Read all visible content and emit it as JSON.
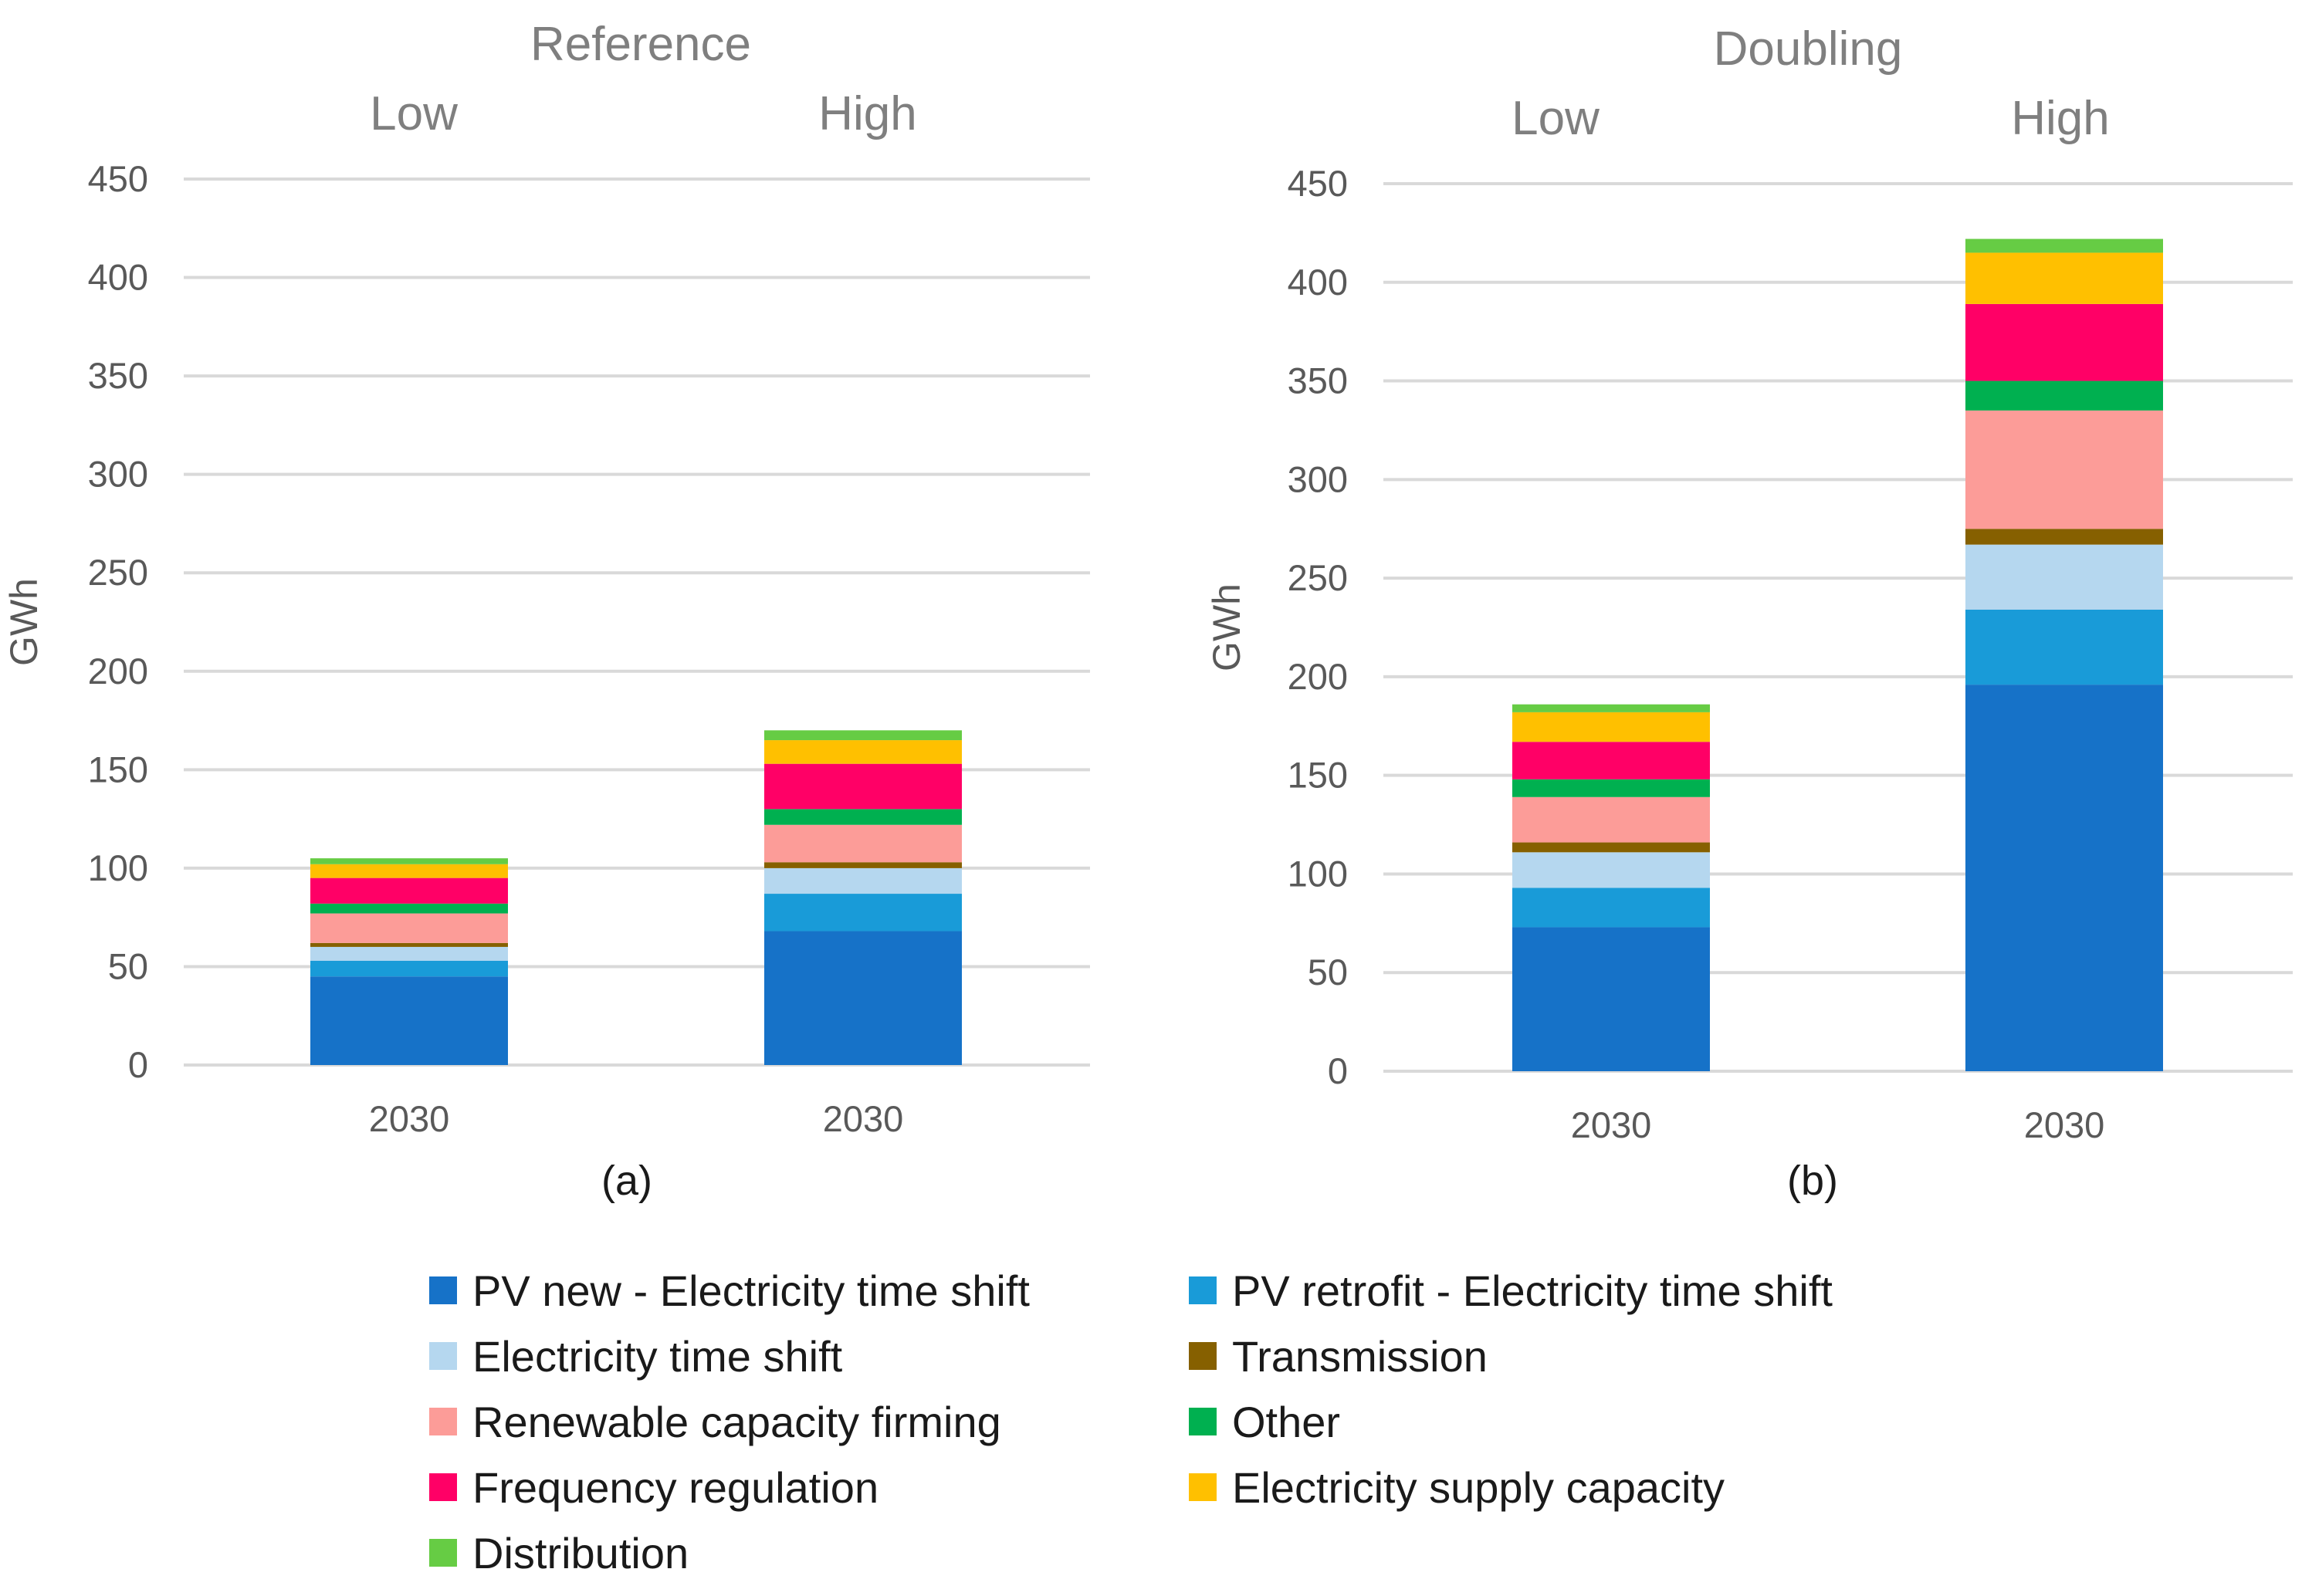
{
  "legend": [
    {
      "name": "PV new - Electricity time shift",
      "color": "#1672c8"
    },
    {
      "name": "PV retrofit - Electricity time shift",
      "color": "#199bd8"
    },
    {
      "name": "Electricity time shift",
      "color": "#b5d7ef"
    },
    {
      "name": "Transmission",
      "color": "#866000"
    },
    {
      "name": "Renewable capacity firming",
      "color": "#fc9c98"
    },
    {
      "name": "Other",
      "color": "#00b050"
    },
    {
      "name": "Frequency regulation",
      "color": "#ff0066"
    },
    {
      "name": "Electricity supply capacity",
      "color": "#ffc000"
    },
    {
      "name": "Distribution",
      "color": "#66cc44"
    }
  ],
  "chart_data": [
    {
      "type": "bar",
      "stacked": true,
      "title": "Reference",
      "caption": "(a)",
      "ylabel": "GWh",
      "ylim": [
        0,
        450
      ],
      "yticks": [
        0,
        50,
        100,
        150,
        200,
        250,
        300,
        350,
        400,
        450
      ],
      "group_labels": [
        "Low",
        "High"
      ],
      "categories": [
        "2030",
        "2030"
      ],
      "series": [
        {
          "name": "PV new - Electricity time shift",
          "values": [
            45,
            68
          ]
        },
        {
          "name": "PV retrofit - Electricity time shift",
          "values": [
            8,
            19
          ]
        },
        {
          "name": "Electricity time shift",
          "values": [
            7,
            13
          ]
        },
        {
          "name": "Transmission",
          "values": [
            2,
            3
          ]
        },
        {
          "name": "Renewable capacity firming",
          "values": [
            15,
            19
          ]
        },
        {
          "name": "Other",
          "values": [
            5,
            8
          ]
        },
        {
          "name": "Frequency regulation",
          "values": [
            13,
            23
          ]
        },
        {
          "name": "Electricity supply capacity",
          "values": [
            7,
            12
          ]
        },
        {
          "name": "Distribution",
          "values": [
            3,
            5
          ]
        }
      ]
    },
    {
      "type": "bar",
      "stacked": true,
      "title": "Doubling",
      "caption": "(b)",
      "ylabel": "GWh",
      "ylim": [
        0,
        450
      ],
      "yticks": [
        0,
        50,
        100,
        150,
        200,
        250,
        300,
        350,
        400,
        450
      ],
      "group_labels": [
        "Low",
        "High"
      ],
      "categories": [
        "2030",
        "2030"
      ],
      "series": [
        {
          "name": "PV new - Electricity time shift",
          "values": [
            73,
            196
          ]
        },
        {
          "name": "PV retrofit - Electricity time shift",
          "values": [
            20,
            38
          ]
        },
        {
          "name": "Electricity time shift",
          "values": [
            18,
            33
          ]
        },
        {
          "name": "Transmission",
          "values": [
            5,
            8
          ]
        },
        {
          "name": "Renewable capacity firming",
          "values": [
            23,
            60
          ]
        },
        {
          "name": "Other",
          "values": [
            9,
            15
          ]
        },
        {
          "name": "Frequency regulation",
          "values": [
            19,
            39
          ]
        },
        {
          "name": "Electricity supply capacity",
          "values": [
            15,
            26
          ]
        },
        {
          "name": "Distribution",
          "values": [
            4,
            7
          ]
        }
      ]
    }
  ]
}
